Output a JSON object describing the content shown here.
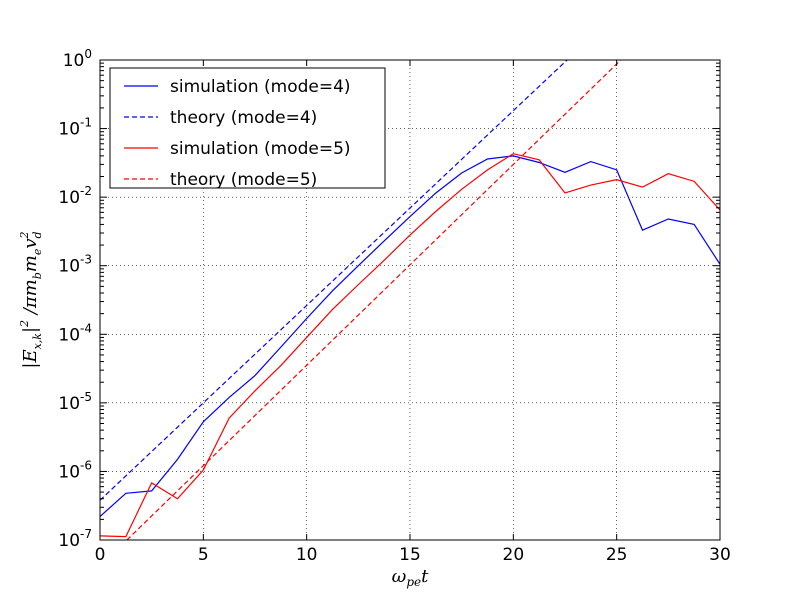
{
  "chart_data": {
    "type": "line",
    "xlabel": "ω_pe t",
    "ylabel": "|E_{x,k}|^2 / π m_b m_e v_d^2",
    "xlim": [
      0,
      30
    ],
    "ylim": [
      1e-07,
      1
    ],
    "yscale": "log",
    "grid": true,
    "legend_position": "top-left",
    "x_ticks": [
      "0",
      "5",
      "10",
      "15",
      "20",
      "25",
      "30"
    ],
    "y_ticks": [
      "-7",
      "-6",
      "-5",
      "-4",
      "-3",
      "-2",
      "-1",
      "0"
    ],
    "series": [
      {
        "name": "simulation (mode=4)",
        "color": "#0000ff",
        "style": "solid",
        "x": [
          0,
          1.25,
          2.5,
          3.75,
          5,
          6.25,
          7.5,
          8.75,
          10,
          11.25,
          12.5,
          13.75,
          15,
          16.25,
          17.5,
          18.75,
          20,
          21.25,
          22.5,
          23.75,
          25,
          26.25,
          27.5,
          28.75,
          30
        ],
        "y": [
          2.2e-07,
          4.8e-07,
          5.2e-07,
          1.5e-06,
          5.3e-06,
          1.2e-05,
          2.5e-05,
          6.5e-05,
          0.00017,
          0.00043,
          0.001,
          0.0023,
          0.0052,
          0.0115,
          0.0225,
          0.036,
          0.04,
          0.032,
          0.023,
          0.033,
          0.025,
          0.0033,
          0.0048,
          0.004,
          0.00105
        ]
      },
      {
        "name": "theory (mode=4)",
        "color": "#0000ff",
        "style": "dashed",
        "x": [
          0,
          22.6
        ],
        "y": [
          3.8e-07,
          1.0
        ]
      },
      {
        "name": "simulation (mode=5)",
        "color": "#ff0000",
        "style": "solid",
        "x": [
          0,
          1.25,
          2.5,
          3.75,
          5,
          6.25,
          7.5,
          8.75,
          10,
          11.25,
          12.5,
          13.75,
          15,
          16.25,
          17.5,
          18.75,
          20,
          21.25,
          22.5,
          23.75,
          25,
          26.25,
          27.5,
          28.75,
          30
        ],
        "y": [
          1.15e-07,
          1.12e-07,
          6.8e-07,
          4e-07,
          1.05e-06,
          6e-06,
          1.5e-05,
          3.5e-05,
          9e-05,
          0.00023,
          0.00053,
          0.0012,
          0.0028,
          0.0062,
          0.013,
          0.025,
          0.043,
          0.035,
          0.0115,
          0.015,
          0.018,
          0.014,
          0.022,
          0.017,
          0.0065
        ]
      },
      {
        "name": "theory (mode=5)",
        "color": "#ff0000",
        "style": "dashed",
        "x": [
          1.3,
          25.2
        ],
        "y": [
          1e-07,
          1.0
        ]
      }
    ]
  }
}
